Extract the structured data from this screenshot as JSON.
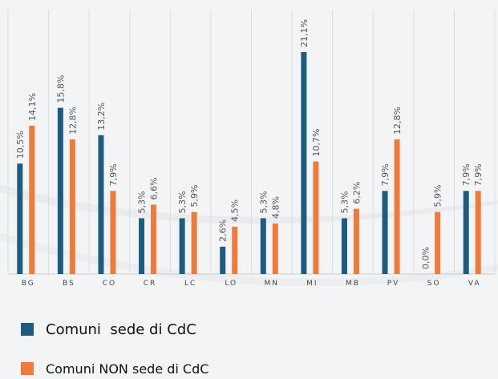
{
  "chart_data": {
    "type": "bar",
    "categories": [
      "BG",
      "BS",
      "CO",
      "CR",
      "LC",
      "LO",
      "MN",
      "MI",
      "MB",
      "PV",
      "SO",
      "VA"
    ],
    "series": [
      {
        "name": "Comuni  sede di CdC",
        "color": "#1d5b7f",
        "values": [
          10.5,
          15.8,
          13.2,
          5.3,
          5.3,
          2.6,
          5.3,
          21.1,
          5.3,
          7.9,
          0.0,
          7.9
        ],
        "value_labels": [
          "10,5%",
          "15,8%",
          "13,2%",
          "5,3%",
          "5,3%",
          "2,6%",
          "5,3%",
          "21,1%",
          "5,3%",
          "7,9%",
          "0,0%",
          "7,9%"
        ]
      },
      {
        "name": "Comuni NON sede di CdC",
        "color": "#f07a3a",
        "values": [
          14.1,
          12.8,
          7.9,
          6.6,
          5.9,
          4.5,
          4.8,
          10.7,
          6.2,
          12.8,
          5.9,
          7.9
        ],
        "value_labels": [
          "14,1%",
          "12,8%",
          "7,9%",
          "6,6%",
          "5,9%",
          "4,5%",
          "4,8%",
          "10,7%",
          "6,2%",
          "12,8%",
          "5,9%",
          "7,9%"
        ]
      }
    ]
  }
}
